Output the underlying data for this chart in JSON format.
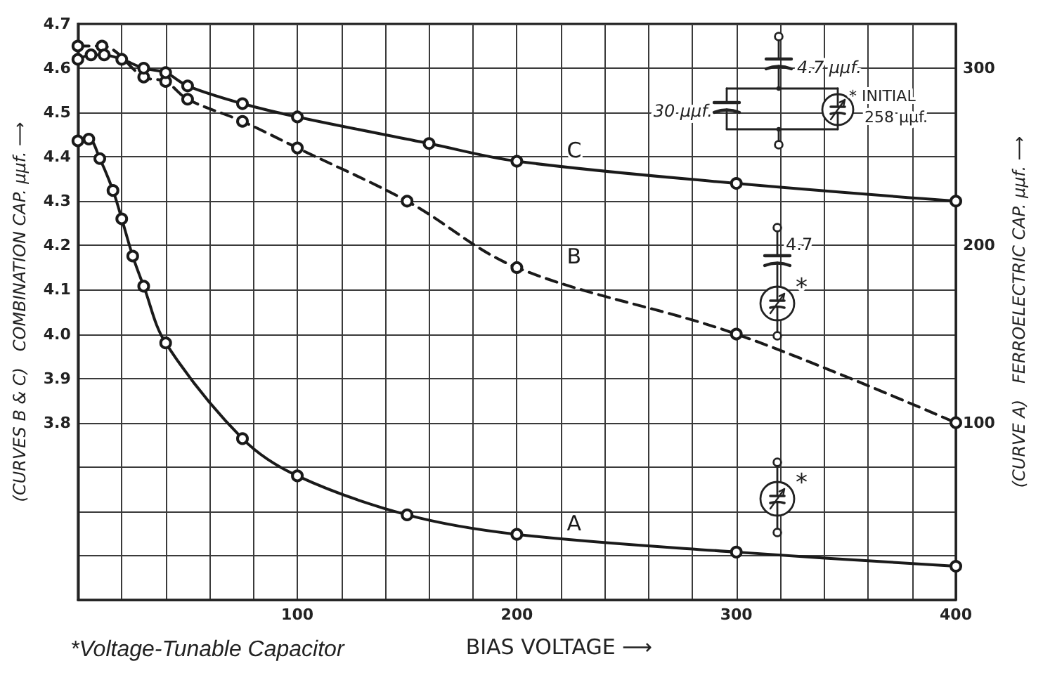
{
  "chart_data": {
    "type": "line",
    "xlabel": "BIAS VOLTAGE ⟶",
    "ylabel": "(CURVES B & C)   COMBINATION CAP. μμf. ⟶",
    "y2label": "(CURVE A)   FERROELECTRIC CAP. μμf. ⟶",
    "annotations": [
      "*Voltage-Tunable Capacitor",
      "4.7 μμf.",
      "30 μμf.",
      "* INITIAL\n258 μμf.",
      "4.7",
      "*",
      "*"
    ],
    "xlim": [
      0,
      400
    ],
    "xticks": [
      {
        "value": 20,
        "label": null
      },
      {
        "value": 40,
        "label": null
      },
      {
        "value": 60,
        "label": null
      },
      {
        "value": 80,
        "label": null
      },
      100,
      {
        "value": 120,
        "label": null
      },
      {
        "value": 140,
        "label": null
      },
      {
        "value": 160,
        "label": null
      },
      {
        "value": 180,
        "label": null
      },
      200,
      {
        "value": 220,
        "label": null
      },
      {
        "value": 240,
        "label": null
      },
      {
        "value": 260,
        "label": null
      },
      {
        "value": 280,
        "label": null
      },
      300,
      {
        "value": 320,
        "label": null
      },
      {
        "value": 340,
        "label": null
      },
      {
        "value": 360,
        "label": null
      },
      {
        "value": 380,
        "label": null
      },
      400
    ],
    "ylim": [
      3.4,
      4.7
    ],
    "yticks": [
      {
        "value": 3.5,
        "label": null
      },
      {
        "value": 3.6,
        "label": null
      },
      {
        "value": 3.7,
        "label": null
      },
      3.8,
      3.9,
      {
        "value": 4,
        "label": "4.0"
      },
      4.1,
      4.2,
      4.3,
      4.4,
      4.5,
      4.6,
      4.7
    ],
    "y2lim": [
      0,
      325
    ],
    "y2ticks": [
      100,
      200,
      300
    ],
    "grid": true,
    "marker": "circle",
    "series": [
      {
        "name": "A",
        "color": "#1a1a1a",
        "axis": "y2",
        "line_style": "solid",
        "x": [
          0,
          5,
          10,
          16,
          20,
          25,
          30,
          40,
          75,
          100,
          150,
          200,
          300,
          400
        ],
        "values": [
          259,
          260,
          249,
          231,
          215,
          194,
          177,
          145,
          91,
          70,
          48,
          37,
          27,
          19
        ]
      },
      {
        "name": "B",
        "color": "#1a1a1a",
        "axis": "y",
        "line_style": "dashed",
        "x": [
          0,
          11,
          30,
          40,
          50,
          75,
          100,
          150,
          200,
          300,
          400
        ],
        "values": [
          4.65,
          4.65,
          4.58,
          4.57,
          4.53,
          4.48,
          4.42,
          4.3,
          4.15,
          4.0,
          3.8
        ]
      },
      {
        "name": "C",
        "color": "#1a1a1a",
        "axis": "y",
        "line_style": "solid",
        "x": [
          0,
          6,
          12,
          20,
          30,
          40,
          50,
          75,
          100,
          160,
          200,
          300,
          400
        ],
        "values": [
          4.62,
          4.63,
          4.63,
          4.62,
          4.6,
          4.59,
          4.56,
          4.52,
          4.49,
          4.43,
          4.39,
          4.34,
          4.3
        ]
      }
    ]
  }
}
